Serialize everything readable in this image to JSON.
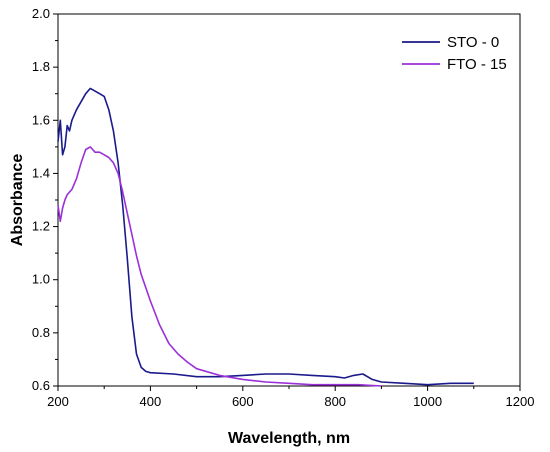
{
  "chart_data": {
    "type": "line",
    "xlabel": "Wavelength, nm",
    "ylabel": "Absorbance",
    "xlim": [
      200,
      1200
    ],
    "ylim": [
      0.6,
      2.0
    ],
    "xticks": [
      200,
      400,
      600,
      800,
      1000,
      1200
    ],
    "yticks": [
      0.6,
      0.8,
      1.0,
      1.2,
      1.4,
      1.6,
      1.8,
      2.0
    ],
    "grid": false,
    "legend_position": "top-right",
    "series": [
      {
        "name": "STO - 0",
        "color": "#1a1a8c",
        "x": [
          200,
          205,
          210,
          215,
          220,
          225,
          230,
          240,
          250,
          260,
          270,
          280,
          290,
          300,
          310,
          320,
          330,
          340,
          350,
          360,
          370,
          380,
          390,
          400,
          450,
          500,
          550,
          600,
          650,
          700,
          750,
          800,
          820,
          840,
          860,
          880,
          900,
          950,
          1000,
          1050,
          1100
        ],
        "values": [
          1.52,
          1.6,
          1.47,
          1.5,
          1.58,
          1.56,
          1.6,
          1.64,
          1.67,
          1.7,
          1.72,
          1.71,
          1.7,
          1.69,
          1.64,
          1.56,
          1.44,
          1.28,
          1.08,
          0.86,
          0.72,
          0.67,
          0.655,
          0.65,
          0.645,
          0.635,
          0.635,
          0.64,
          0.645,
          0.645,
          0.64,
          0.635,
          0.63,
          0.64,
          0.645,
          0.625,
          0.615,
          0.61,
          0.605,
          0.61,
          0.61
        ]
      },
      {
        "name": "FTO - 15",
        "color": "#9b30d9",
        "x": [
          200,
          205,
          210,
          215,
          220,
          230,
          240,
          250,
          260,
          270,
          280,
          290,
          300,
          310,
          320,
          330,
          340,
          350,
          360,
          370,
          380,
          400,
          420,
          440,
          460,
          480,
          500,
          550,
          600,
          650,
          700,
          750,
          800,
          850,
          900
        ],
        "values": [
          1.28,
          1.22,
          1.27,
          1.3,
          1.32,
          1.34,
          1.38,
          1.44,
          1.49,
          1.5,
          1.48,
          1.48,
          1.47,
          1.46,
          1.44,
          1.4,
          1.33,
          1.25,
          1.17,
          1.09,
          1.02,
          0.92,
          0.83,
          0.76,
          0.72,
          0.69,
          0.665,
          0.64,
          0.625,
          0.615,
          0.61,
          0.605,
          0.605,
          0.605,
          0.6
        ]
      }
    ]
  }
}
